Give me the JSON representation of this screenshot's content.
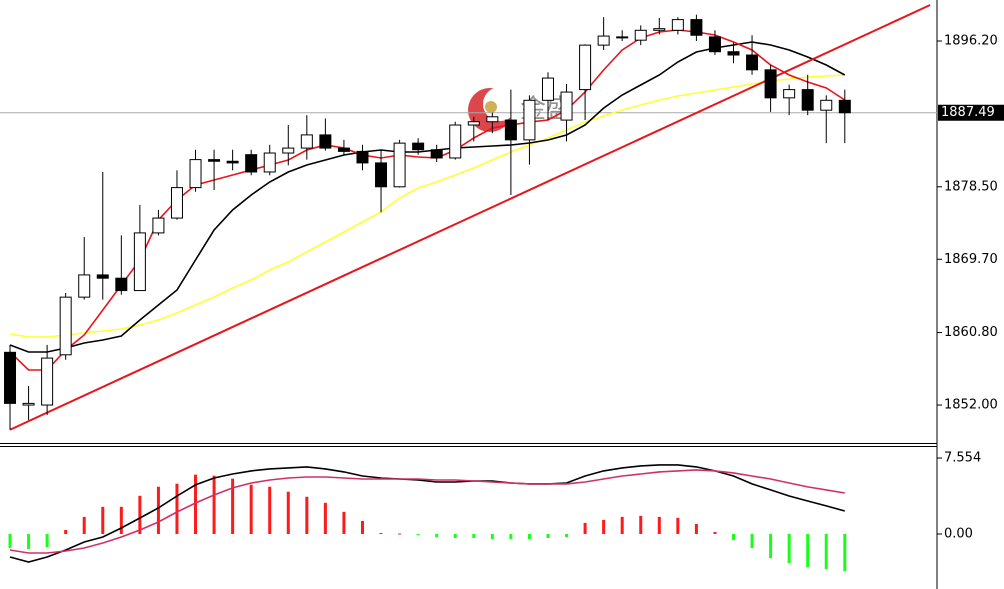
{
  "chart_data": [
    {
      "type": "candlestick",
      "watermark": "金盛",
      "xlim": [
        -0.54,
        49.97
      ],
      "ylim": [
        1847.39,
        1901.18
      ],
      "yticks": [
        {
          "value": 1852.0,
          "label": "1852.00"
        },
        {
          "value": 1860.8,
          "label": "1860.80"
        },
        {
          "value": 1869.7,
          "label": "1869.70"
        },
        {
          "value": 1878.5,
          "label": "1878.50"
        },
        {
          "value": 1896.2,
          "label": "1896.20"
        }
      ],
      "last_price": 1887.49,
      "up_color": "#ffffff",
      "down_color": "#000000",
      "open": [
        1858.4,
        1852.0,
        1852.0,
        1858.1,
        1865.1,
        1867.8,
        1867.4,
        1865.9,
        1872.9,
        1874.7,
        1878.4,
        1881.8,
        1881.6,
        1882.4,
        1880.3,
        1882.6,
        1883.2,
        1884.8,
        1883.2,
        1882.8,
        1881.4,
        1878.5,
        1883.8,
        1883.0,
        1882.0,
        1886.0,
        1886.4,
        1886.6,
        1884.2,
        1889.0,
        1886.6,
        1890.3,
        1895.7,
        1896.7,
        1896.3,
        1897.5,
        1897.5,
        1898.8,
        1896.7,
        1894.9,
        1894.5,
        1892.7,
        1889.3,
        1890.3,
        1887.8,
        1889.0
      ],
      "high": [
        1859.3,
        1854.3,
        1859.3,
        1865.6,
        1872.4,
        1880.3,
        1872.6,
        1876.3,
        1875.7,
        1880.5,
        1883.0,
        1883.0,
        1883.0,
        1883.0,
        1883.6,
        1886.0,
        1887.2,
        1886.8,
        1884.2,
        1883.6,
        1883.0,
        1884.2,
        1884.4,
        1883.6,
        1886.4,
        1887.0,
        1887.5,
        1890.3,
        1889.6,
        1892.4,
        1891.0,
        1895.8,
        1899.1,
        1897.5,
        1898.1,
        1899.0,
        1899.1,
        1899.4,
        1897.5,
        1896.0,
        1896.9,
        1893.3,
        1890.9,
        1892.1,
        1889.6,
        1890.3
      ],
      "low": [
        1849.0,
        1850.2,
        1850.8,
        1857.5,
        1864.8,
        1864.8,
        1865.4,
        1865.9,
        1872.6,
        1874.5,
        1877.9,
        1878.1,
        1880.5,
        1879.9,
        1879.9,
        1881.1,
        1881.8,
        1882.9,
        1882.4,
        1880.5,
        1875.4,
        1878.4,
        1882.4,
        1881.5,
        1881.8,
        1884.0,
        1885.0,
        1877.5,
        1881.2,
        1886.6,
        1884.0,
        1886.6,
        1895.1,
        1896.2,
        1895.7,
        1897.0,
        1897.0,
        1896.2,
        1894.5,
        1893.5,
        1892.1,
        1887.6,
        1887.2,
        1887.2,
        1883.8,
        1883.8
      ],
      "close": [
        1852.2,
        1852.2,
        1857.7,
        1865.1,
        1867.8,
        1867.4,
        1865.9,
        1872.9,
        1874.7,
        1878.4,
        1881.8,
        1881.6,
        1881.4,
        1880.3,
        1882.6,
        1883.2,
        1884.8,
        1883.2,
        1882.8,
        1881.4,
        1878.5,
        1883.8,
        1883.0,
        1882.0,
        1886.0,
        1886.4,
        1887.0,
        1884.2,
        1889.0,
        1891.7,
        1890.0,
        1895.7,
        1896.8,
        1896.6,
        1897.5,
        1897.7,
        1898.8,
        1896.9,
        1894.9,
        1894.5,
        1892.7,
        1889.3,
        1890.3,
        1887.8,
        1889.0,
        1887.49
      ],
      "series": [
        {
          "color": "#ffff33",
          "values": [
            1860.62,
            1860.26,
            1860.26,
            1860.5,
            1860.75,
            1860.99,
            1861.23,
            1861.72,
            1862.32,
            1863.17,
            1864.15,
            1865.12,
            1866.21,
            1867.18,
            1868.39,
            1869.37,
            1870.58,
            1871.79,
            1873.01,
            1874.22,
            1875.44,
            1877.14,
            1878.35,
            1879.08,
            1879.93,
            1880.78,
            1881.75,
            1882.72,
            1883.57,
            1884.42,
            1885.39,
            1886.37,
            1887.09,
            1887.82,
            1888.43,
            1889.04,
            1889.52,
            1889.89,
            1890.25,
            1890.61,
            1890.98,
            1891.34,
            1891.59,
            1891.83,
            1891.95,
            1892.07
          ]
        },
        {
          "color": "#000000",
          "values": [
            1859.29,
            1858.44,
            1858.44,
            1858.92,
            1859.53,
            1859.9,
            1860.38,
            1862.32,
            1864.15,
            1865.97,
            1869.61,
            1873.25,
            1875.68,
            1877.5,
            1879.08,
            1880.29,
            1881.14,
            1881.75,
            1882.36,
            1882.72,
            1882.97,
            1882.72,
            1882.72,
            1882.97,
            1883.21,
            1883.33,
            1883.45,
            1883.57,
            1883.82,
            1884.18,
            1884.79,
            1886.0,
            1888.06,
            1889.64,
            1890.86,
            1892.07,
            1893.65,
            1894.86,
            1895.35,
            1895.71,
            1896.08,
            1895.71,
            1895.11,
            1894.26,
            1893.29,
            1892.07
          ]
        },
        {
          "color": "#e8141c",
          "values": [
            1858.44,
            1856.25,
            1856.25,
            1858.68,
            1860.5,
            1863.54,
            1866.57,
            1869.61,
            1874.47,
            1876.89,
            1878.72,
            1879.32,
            1879.93,
            1880.54,
            1881.14,
            1881.75,
            1882.97,
            1883.57,
            1883.21,
            1882.36,
            1881.99,
            1882.36,
            1882.12,
            1881.99,
            1882.97,
            1884.42,
            1885.64,
            1886.0,
            1886.36,
            1886.61,
            1887.82,
            1890.01,
            1892.68,
            1895.11,
            1896.56,
            1897.29,
            1897.54,
            1897.29,
            1896.93,
            1896.08,
            1895.11,
            1893.29,
            1892.07,
            1891.22,
            1890.49,
            1889.04
          ]
        }
      ],
      "trendline": {
        "color": "#e8141c",
        "points": [
          [
            0,
            1849.0
          ],
          [
            49.6,
            1900.57
          ]
        ]
      }
    },
    {
      "type": "macd",
      "xlim": [
        -0.54,
        49.97
      ],
      "ylim": [
        -5.47,
        8.65
      ],
      "yticks": [
        {
          "value": 0,
          "label": "0.00"
        },
        7.554
      ],
      "histogram": {
        "up_color": "#ff1a1a",
        "down_color": "#1aff1a",
        "values": [
          -1.4,
          -1.5,
          -1.3,
          0.4,
          1.7,
          2.7,
          2.7,
          3.8,
          4.7,
          5.0,
          5.9,
          5.8,
          5.5,
          4.9,
          4.7,
          4.2,
          3.7,
          3.1,
          2.2,
          1.3,
          0.1,
          0.05,
          -0.1,
          -0.3,
          -0.4,
          -0.4,
          -0.5,
          -0.5,
          -0.5,
          -0.4,
          -0.3,
          1.1,
          1.4,
          1.7,
          1.8,
          1.7,
          1.6,
          1.0,
          0.2,
          -0.6,
          -1.4,
          -2.4,
          -2.9,
          -3.3,
          -3.5,
          -3.7
        ]
      },
      "series": [
        {
          "color": "#000000",
          "values": [
            -2.29,
            -2.79,
            -2.29,
            -1.59,
            -0.8,
            -0.3,
            0.6,
            1.59,
            2.59,
            3.78,
            4.88,
            5.57,
            5.97,
            6.27,
            6.47,
            6.57,
            6.67,
            6.47,
            6.17,
            5.77,
            5.57,
            5.47,
            5.37,
            5.17,
            5.17,
            5.27,
            5.27,
            5.07,
            4.98,
            4.98,
            5.07,
            5.77,
            6.27,
            6.57,
            6.77,
            6.87,
            6.87,
            6.67,
            6.27,
            5.77,
            4.98,
            4.38,
            3.78,
            3.28,
            2.79,
            2.29
          ]
        },
        {
          "color": "#d0306a",
          "values": [
            -1.59,
            -1.89,
            -1.89,
            -1.69,
            -1.39,
            -0.9,
            -0.3,
            0.4,
            1.19,
            2.19,
            3.08,
            3.88,
            4.58,
            5.07,
            5.37,
            5.57,
            5.67,
            5.67,
            5.57,
            5.47,
            5.47,
            5.47,
            5.47,
            5.37,
            5.37,
            5.27,
            5.17,
            5.07,
            4.98,
            4.98,
            4.98,
            5.17,
            5.47,
            5.77,
            5.97,
            6.17,
            6.27,
            6.37,
            6.27,
            6.07,
            5.77,
            5.47,
            5.07,
            4.68,
            4.38,
            4.08
          ]
        }
      ]
    }
  ]
}
